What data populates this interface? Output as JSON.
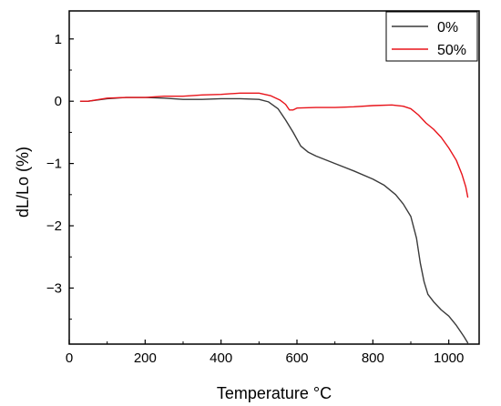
{
  "chart_data": {
    "type": "line",
    "xlabel": "Temperature °C",
    "ylabel": "dL/Lo (%)",
    "xlim": [
      0,
      1080
    ],
    "ylim": [
      -3.9,
      1.45
    ],
    "xticks": [
      0,
      200,
      400,
      600,
      800,
      1000
    ],
    "yticks": [
      1,
      0,
      -1,
      -2,
      -3
    ],
    "ytick_labels": [
      "1",
      "0",
      "−1",
      "−2",
      "−3"
    ],
    "grid": false,
    "legend_position": "top-right",
    "series": [
      {
        "name": "0%",
        "color": "#3a3a3a",
        "points": [
          [
            30,
            0
          ],
          [
            50,
            0
          ],
          [
            100,
            0.04
          ],
          [
            150,
            0.06
          ],
          [
            200,
            0.06
          ],
          [
            250,
            0.05
          ],
          [
            300,
            0.03
          ],
          [
            350,
            0.03
          ],
          [
            400,
            0.04
          ],
          [
            450,
            0.04
          ],
          [
            500,
            0.03
          ],
          [
            525,
            -0.01
          ],
          [
            550,
            -0.12
          ],
          [
            570,
            -0.3
          ],
          [
            590,
            -0.5
          ],
          [
            610,
            -0.72
          ],
          [
            630,
            -0.82
          ],
          [
            650,
            -0.88
          ],
          [
            700,
            -1.0
          ],
          [
            750,
            -1.12
          ],
          [
            800,
            -1.25
          ],
          [
            830,
            -1.35
          ],
          [
            860,
            -1.5
          ],
          [
            880,
            -1.65
          ],
          [
            900,
            -1.85
          ],
          [
            915,
            -2.2
          ],
          [
            925,
            -2.6
          ],
          [
            935,
            -2.9
          ],
          [
            945,
            -3.1
          ],
          [
            960,
            -3.22
          ],
          [
            980,
            -3.35
          ],
          [
            1000,
            -3.45
          ],
          [
            1020,
            -3.6
          ],
          [
            1040,
            -3.78
          ],
          [
            1050,
            -3.88
          ]
        ]
      },
      {
        "name": "50%",
        "color": "#e8131a",
        "points": [
          [
            30,
            0
          ],
          [
            50,
            0
          ],
          [
            100,
            0.05
          ],
          [
            150,
            0.06
          ],
          [
            200,
            0.06
          ],
          [
            250,
            0.08
          ],
          [
            300,
            0.08
          ],
          [
            350,
            0.1
          ],
          [
            400,
            0.11
          ],
          [
            450,
            0.13
          ],
          [
            500,
            0.13
          ],
          [
            530,
            0.09
          ],
          [
            555,
            0.02
          ],
          [
            570,
            -0.05
          ],
          [
            580,
            -0.14
          ],
          [
            590,
            -0.14
          ],
          [
            600,
            -0.11
          ],
          [
            650,
            -0.1
          ],
          [
            700,
            -0.1
          ],
          [
            750,
            -0.09
          ],
          [
            800,
            -0.07
          ],
          [
            850,
            -0.06
          ],
          [
            880,
            -0.08
          ],
          [
            900,
            -0.12
          ],
          [
            920,
            -0.22
          ],
          [
            940,
            -0.35
          ],
          [
            960,
            -0.45
          ],
          [
            980,
            -0.58
          ],
          [
            1000,
            -0.75
          ],
          [
            1020,
            -0.95
          ],
          [
            1035,
            -1.18
          ],
          [
            1045,
            -1.38
          ],
          [
            1050,
            -1.54
          ]
        ]
      }
    ]
  }
}
